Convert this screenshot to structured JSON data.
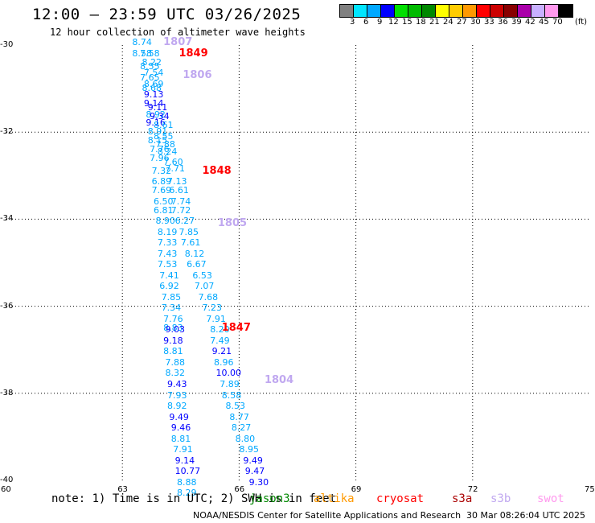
{
  "header": {
    "title": "12:00 — 23:59 UTC 03/26/2025",
    "subtitle": "12 hour collection of altimeter wave heights"
  },
  "legend": {
    "unit": "(ft)",
    "bins": [
      {
        "label": "3",
        "color": "#808080"
      },
      {
        "label": "6",
        "color": "#00e5ff"
      },
      {
        "label": "9",
        "color": "#00a8ff"
      },
      {
        "label": "12",
        "color": "#0000ff"
      },
      {
        "label": "15",
        "color": "#00e000"
      },
      {
        "label": "18",
        "color": "#00bb00"
      },
      {
        "label": "21",
        "color": "#008800"
      },
      {
        "label": "24",
        "color": "#ffff00"
      },
      {
        "label": "27",
        "color": "#ffcc00"
      },
      {
        "label": "30",
        "color": "#ff9900"
      },
      {
        "label": "33",
        "color": "#ff0000"
      },
      {
        "label": "36",
        "color": "#cc0000"
      },
      {
        "label": "39",
        "color": "#880000"
      },
      {
        "label": "42",
        "color": "#aa00aa"
      },
      {
        "label": "45",
        "color": "#c8b0ff"
      },
      {
        "label": "70",
        "color": "#ff99ee"
      },
      {
        "label": "",
        "color": "#000000"
      }
    ]
  },
  "axes": {
    "lon_labels": [
      "60",
      "63",
      "66",
      "69",
      "72",
      "75"
    ],
    "lat_labels": [
      "-30",
      "-32",
      "-34",
      "-36",
      "-38",
      "-40"
    ],
    "lon_range": [
      60,
      75
    ],
    "lat_range": [
      -40,
      -30
    ],
    "grid": true
  },
  "tracks": [
    {
      "pass": "1807",
      "color": "#c0a8f0",
      "lon": 64.3,
      "lat": -29.95
    },
    {
      "pass": "1849",
      "color": "#ff0000",
      "lon": 64.7,
      "lat": -30.2
    },
    {
      "pass": "1806",
      "color": "#c0a8f0",
      "lon": 64.8,
      "lat": -30.7
    },
    {
      "pass": "1848",
      "color": "#ff0000",
      "lon": 65.3,
      "lat": -32.9
    },
    {
      "pass": "1805",
      "color": "#c0a8f0",
      "lon": 65.7,
      "lat": -34.1
    },
    {
      "pass": "1847",
      "color": "#ff0000",
      "lon": 65.8,
      "lat": -36.5
    },
    {
      "pass": "1804",
      "color": "#c0a8f0",
      "lon": 66.9,
      "lat": -37.7
    }
  ],
  "wave_points": [
    {
      "v": "8.74",
      "lon": 63.5,
      "lat": -29.95,
      "c": "#00a8ff"
    },
    {
      "v": "8.58",
      "lon": 63.5,
      "lat": -30.2,
      "c": "#00a8ff"
    },
    {
      "v": "7.58",
      "lon": 63.7,
      "lat": -30.2,
      "c": "#00a8ff"
    },
    {
      "v": "8.22",
      "lon": 63.75,
      "lat": -30.4,
      "c": "#00a8ff"
    },
    {
      "v": "8.55",
      "lon": 63.7,
      "lat": -30.5,
      "c": "#00a8ff"
    },
    {
      "v": "7.54",
      "lon": 63.8,
      "lat": -30.65,
      "c": "#00a8ff"
    },
    {
      "v": "7.65",
      "lon": 63.7,
      "lat": -30.75,
      "c": "#00a8ff"
    },
    {
      "v": "8.69",
      "lon": 63.8,
      "lat": -30.9,
      "c": "#00a8ff"
    },
    {
      "v": "8.68",
      "lon": 63.75,
      "lat": -31.0,
      "c": "#00a8ff"
    },
    {
      "v": "9.13",
      "lon": 63.8,
      "lat": -31.15,
      "c": "#0000ff"
    },
    {
      "v": "9.14",
      "lon": 63.8,
      "lat": -31.35,
      "c": "#0000ff"
    },
    {
      "v": "9.11",
      "lon": 63.9,
      "lat": -31.45,
      "c": "#0000ff"
    },
    {
      "v": "8.92",
      "lon": 63.85,
      "lat": -31.6,
      "c": "#00a8ff"
    },
    {
      "v": "9.34",
      "lon": 63.95,
      "lat": -31.65,
      "c": "#0000ff"
    },
    {
      "v": "9.16",
      "lon": 63.85,
      "lat": -31.8,
      "c": "#0000ff"
    },
    {
      "v": "8.61",
      "lon": 64.05,
      "lat": -31.85,
      "c": "#00a8ff"
    },
    {
      "v": "8.91",
      "lon": 63.9,
      "lat": -32.0,
      "c": "#00a8ff"
    },
    {
      "v": "8.55",
      "lon": 64.05,
      "lat": -32.1,
      "c": "#00a8ff"
    },
    {
      "v": "8.15",
      "lon": 63.9,
      "lat": -32.2,
      "c": "#00a8ff"
    },
    {
      "v": "7.88",
      "lon": 64.1,
      "lat": -32.3,
      "c": "#00a8ff"
    },
    {
      "v": "7.76",
      "lon": 63.95,
      "lat": -32.4,
      "c": "#00a8ff"
    },
    {
      "v": "8.24",
      "lon": 64.15,
      "lat": -32.45,
      "c": "#00a8ff"
    },
    {
      "v": "7.96",
      "lon": 63.95,
      "lat": -32.6,
      "c": "#00a8ff"
    },
    {
      "v": "7.60",
      "lon": 64.3,
      "lat": -32.7,
      "c": "#00a8ff"
    },
    {
      "v": "7.32",
      "lon": 64.0,
      "lat": -32.9,
      "c": "#00a8ff"
    },
    {
      "v": "7.71",
      "lon": 64.35,
      "lat": -32.85,
      "c": "#00a8ff"
    },
    {
      "v": "6.89",
      "lon": 64.0,
      "lat": -33.15,
      "c": "#00a8ff"
    },
    {
      "v": "7.13",
      "lon": 64.4,
      "lat": -33.15,
      "c": "#00a8ff"
    },
    {
      "v": "7.69",
      "lon": 64.0,
      "lat": -33.35,
      "c": "#00a8ff"
    },
    {
      "v": "6.61",
      "lon": 64.45,
      "lat": -33.35,
      "c": "#00a8ff"
    },
    {
      "v": "6.50",
      "lon": 64.05,
      "lat": -33.6,
      "c": "#00a8ff"
    },
    {
      "v": "7.74",
      "lon": 64.5,
      "lat": -33.6,
      "c": "#00a8ff"
    },
    {
      "v": "6.81",
      "lon": 64.05,
      "lat": -33.8,
      "c": "#00a8ff"
    },
    {
      "v": "7.72",
      "lon": 64.5,
      "lat": -33.8,
      "c": "#00a8ff"
    },
    {
      "v": "8.90",
      "lon": 64.1,
      "lat": -34.05,
      "c": "#00a8ff"
    },
    {
      "v": "6.27",
      "lon": 64.6,
      "lat": -34.05,
      "c": "#00a8ff"
    },
    {
      "v": "8.19",
      "lon": 64.15,
      "lat": -34.3,
      "c": "#00a8ff"
    },
    {
      "v": "7.85",
      "lon": 64.7,
      "lat": -34.3,
      "c": "#00a8ff"
    },
    {
      "v": "7.33",
      "lon": 64.15,
      "lat": -34.55,
      "c": "#00a8ff"
    },
    {
      "v": "7.61",
      "lon": 64.75,
      "lat": -34.55,
      "c": "#00a8ff"
    },
    {
      "v": "7.43",
      "lon": 64.15,
      "lat": -34.8,
      "c": "#00a8ff"
    },
    {
      "v": "8.12",
      "lon": 64.85,
      "lat": -34.8,
      "c": "#00a8ff"
    },
    {
      "v": "7.53",
      "lon": 64.15,
      "lat": -35.05,
      "c": "#00a8ff"
    },
    {
      "v": "6.67",
      "lon": 64.9,
      "lat": -35.05,
      "c": "#00a8ff"
    },
    {
      "v": "7.41",
      "lon": 64.2,
      "lat": -35.3,
      "c": "#00a8ff"
    },
    {
      "v": "6.53",
      "lon": 65.05,
      "lat": -35.3,
      "c": "#00a8ff"
    },
    {
      "v": "6.92",
      "lon": 64.2,
      "lat": -35.55,
      "c": "#00a8ff"
    },
    {
      "v": "7.07",
      "lon": 65.1,
      "lat": -35.55,
      "c": "#00a8ff"
    },
    {
      "v": "7.85",
      "lon": 64.25,
      "lat": -35.8,
      "c": "#00a8ff"
    },
    {
      "v": "7.68",
      "lon": 65.2,
      "lat": -35.8,
      "c": "#00a8ff"
    },
    {
      "v": "7.34",
      "lon": 64.25,
      "lat": -36.05,
      "c": "#00a8ff"
    },
    {
      "v": "7.23",
      "lon": 65.3,
      "lat": -36.05,
      "c": "#00a8ff"
    },
    {
      "v": "7.76",
      "lon": 64.3,
      "lat": -36.3,
      "c": "#00a8ff"
    },
    {
      "v": "7.91",
      "lon": 65.4,
      "lat": -36.3,
      "c": "#00a8ff"
    },
    {
      "v": "8.83",
      "lon": 64.3,
      "lat": -36.5,
      "c": "#00a8ff"
    },
    {
      "v": "9.03",
      "lon": 64.35,
      "lat": -36.55,
      "c": "#0000ff"
    },
    {
      "v": "8.20",
      "lon": 65.5,
      "lat": -36.55,
      "c": "#00a8ff"
    },
    {
      "v": "9.18",
      "lon": 64.3,
      "lat": -36.8,
      "c": "#0000ff"
    },
    {
      "v": "7.49",
      "lon": 65.5,
      "lat": -36.8,
      "c": "#00a8ff"
    },
    {
      "v": "8.81",
      "lon": 64.3,
      "lat": -37.05,
      "c": "#00a8ff"
    },
    {
      "v": "9.21",
      "lon": 65.55,
      "lat": -37.05,
      "c": "#0000ff"
    },
    {
      "v": "7.88",
      "lon": 64.35,
      "lat": -37.3,
      "c": "#00a8ff"
    },
    {
      "v": "8.96",
      "lon": 65.6,
      "lat": -37.3,
      "c": "#00a8ff"
    },
    {
      "v": "8.32",
      "lon": 64.35,
      "lat": -37.55,
      "c": "#00a8ff"
    },
    {
      "v": "10.00",
      "lon": 65.65,
      "lat": -37.55,
      "c": "#0000ff"
    },
    {
      "v": "9.43",
      "lon": 64.4,
      "lat": -37.8,
      "c": "#0000ff"
    },
    {
      "v": "7.89",
      "lon": 65.75,
      "lat": -37.8,
      "c": "#00a8ff"
    },
    {
      "v": "7.93",
      "lon": 64.4,
      "lat": -38.05,
      "c": "#00a8ff"
    },
    {
      "v": "8.58",
      "lon": 65.8,
      "lat": -38.05,
      "c": "#00a8ff"
    },
    {
      "v": "8.92",
      "lon": 64.4,
      "lat": -38.3,
      "c": "#00a8ff"
    },
    {
      "v": "8.53",
      "lon": 65.9,
      "lat": -38.3,
      "c": "#00a8ff"
    },
    {
      "v": "9.49",
      "lon": 64.45,
      "lat": -38.55,
      "c": "#0000ff"
    },
    {
      "v": "8.77",
      "lon": 66.0,
      "lat": -38.55,
      "c": "#00a8ff"
    },
    {
      "v": "9.46",
      "lon": 64.5,
      "lat": -38.8,
      "c": "#0000ff"
    },
    {
      "v": "8.27",
      "lon": 66.05,
      "lat": -38.8,
      "c": "#00a8ff"
    },
    {
      "v": "8.81",
      "lon": 64.5,
      "lat": -39.05,
      "c": "#00a8ff"
    },
    {
      "v": "8.80",
      "lon": 66.15,
      "lat": -39.05,
      "c": "#00a8ff"
    },
    {
      "v": "7.91",
      "lon": 64.55,
      "lat": -39.3,
      "c": "#00a8ff"
    },
    {
      "v": "8.95",
      "lon": 66.25,
      "lat": -39.3,
      "c": "#00a8ff"
    },
    {
      "v": "9.14",
      "lon": 64.6,
      "lat": -39.55,
      "c": "#0000ff"
    },
    {
      "v": "9.49",
      "lon": 66.35,
      "lat": -39.55,
      "c": "#0000ff"
    },
    {
      "v": "10.77",
      "lon": 64.6,
      "lat": -39.8,
      "c": "#0000ff"
    },
    {
      "v": "9.47",
      "lon": 66.4,
      "lat": -39.8,
      "c": "#0000ff"
    },
    {
      "v": "8.88",
      "lon": 64.65,
      "lat": -40.05,
      "c": "#00a8ff"
    },
    {
      "v": "9.30",
      "lon": 66.5,
      "lat": -40.05,
      "c": "#0000ff"
    },
    {
      "v": "8.29",
      "lon": 64.65,
      "lat": -40.3,
      "c": "#00a8ff"
    }
  ],
  "note": {
    "text": "note: 1) Time is in UTC; 2) SWH is in feet",
    "satellites": [
      {
        "name": "jason3",
        "color": "#008800"
      },
      {
        "name": "altika",
        "color": "#ff9900"
      },
      {
        "name": "cryosat",
        "color": "#ff0000"
      },
      {
        "name": "s3a",
        "color": "#aa0000"
      },
      {
        "name": "s3b",
        "color": "#c0a8f0"
      },
      {
        "name": "swot",
        "color": "#ff99ee"
      }
    ]
  },
  "footer": {
    "left": "NOAA/NESDIS Center for Satellite Applications and Research",
    "right": "30 Mar 08:26:04 UTC 2025"
  }
}
